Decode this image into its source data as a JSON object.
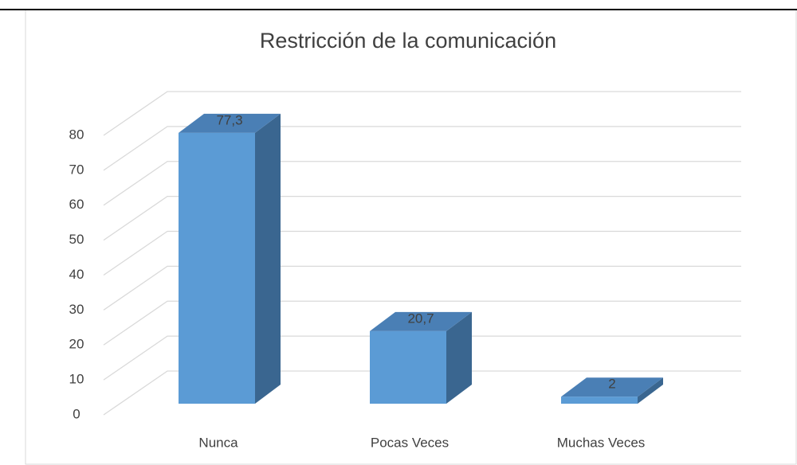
{
  "chart_data": {
    "type": "bar3d",
    "title": "Restricción de la comunicación",
    "categories": [
      "Nunca",
      "Pocas Veces",
      "Muchas Veces"
    ],
    "values": [
      77.3,
      20.7,
      2
    ],
    "value_labels": [
      "77,3",
      "20,7",
      "2"
    ],
    "color": "#5b9bd5",
    "ylim": [
      0,
      80
    ],
    "yticks": [
      0,
      10,
      20,
      30,
      40,
      50,
      60,
      70,
      80
    ],
    "grid": true
  }
}
